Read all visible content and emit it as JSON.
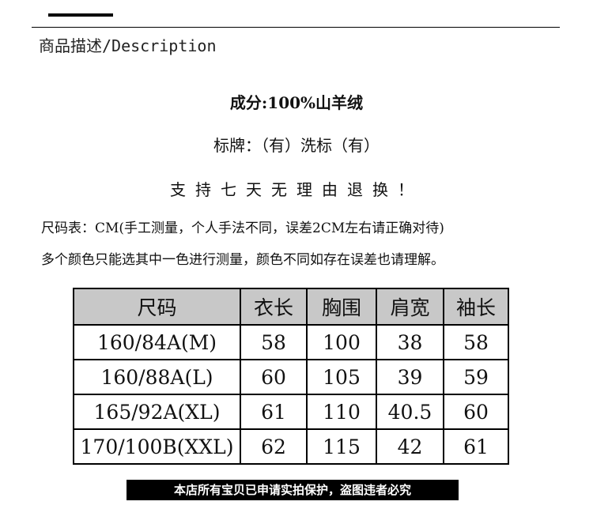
{
  "heading": "商品描述/Description",
  "composition": "成分:100%山羊绒",
  "brand_label": "标牌：（有）洗标（有）",
  "return_policy": "支持七天无理由退换！",
  "size_note": "尺码表：CM(手工测量，个人手法不同，误差2CM左右请正确对待)",
  "color_note": "多个颜色只能选其中一色进行测量，颜色不同如存在误差也请理解。",
  "size_table": {
    "headers": [
      "尺码",
      "衣长",
      "胸围",
      "肩宽",
      "袖长"
    ],
    "rows": [
      [
        "160/84A(M)",
        "58",
        "100",
        "38",
        "58"
      ],
      [
        "160/88A(L)",
        "60",
        "105",
        "39",
        "59"
      ],
      [
        "165/92A(XL)",
        "61",
        "110",
        "40.5",
        "60"
      ],
      [
        "170/100B(XXL)",
        "62",
        "115",
        "42",
        "61"
      ]
    ]
  },
  "banner": "本店所有宝贝已申请实拍保护，盗图违者必究",
  "colors": {
    "header_bg": "#c8c8c8",
    "banner_bg": "#000000"
  }
}
